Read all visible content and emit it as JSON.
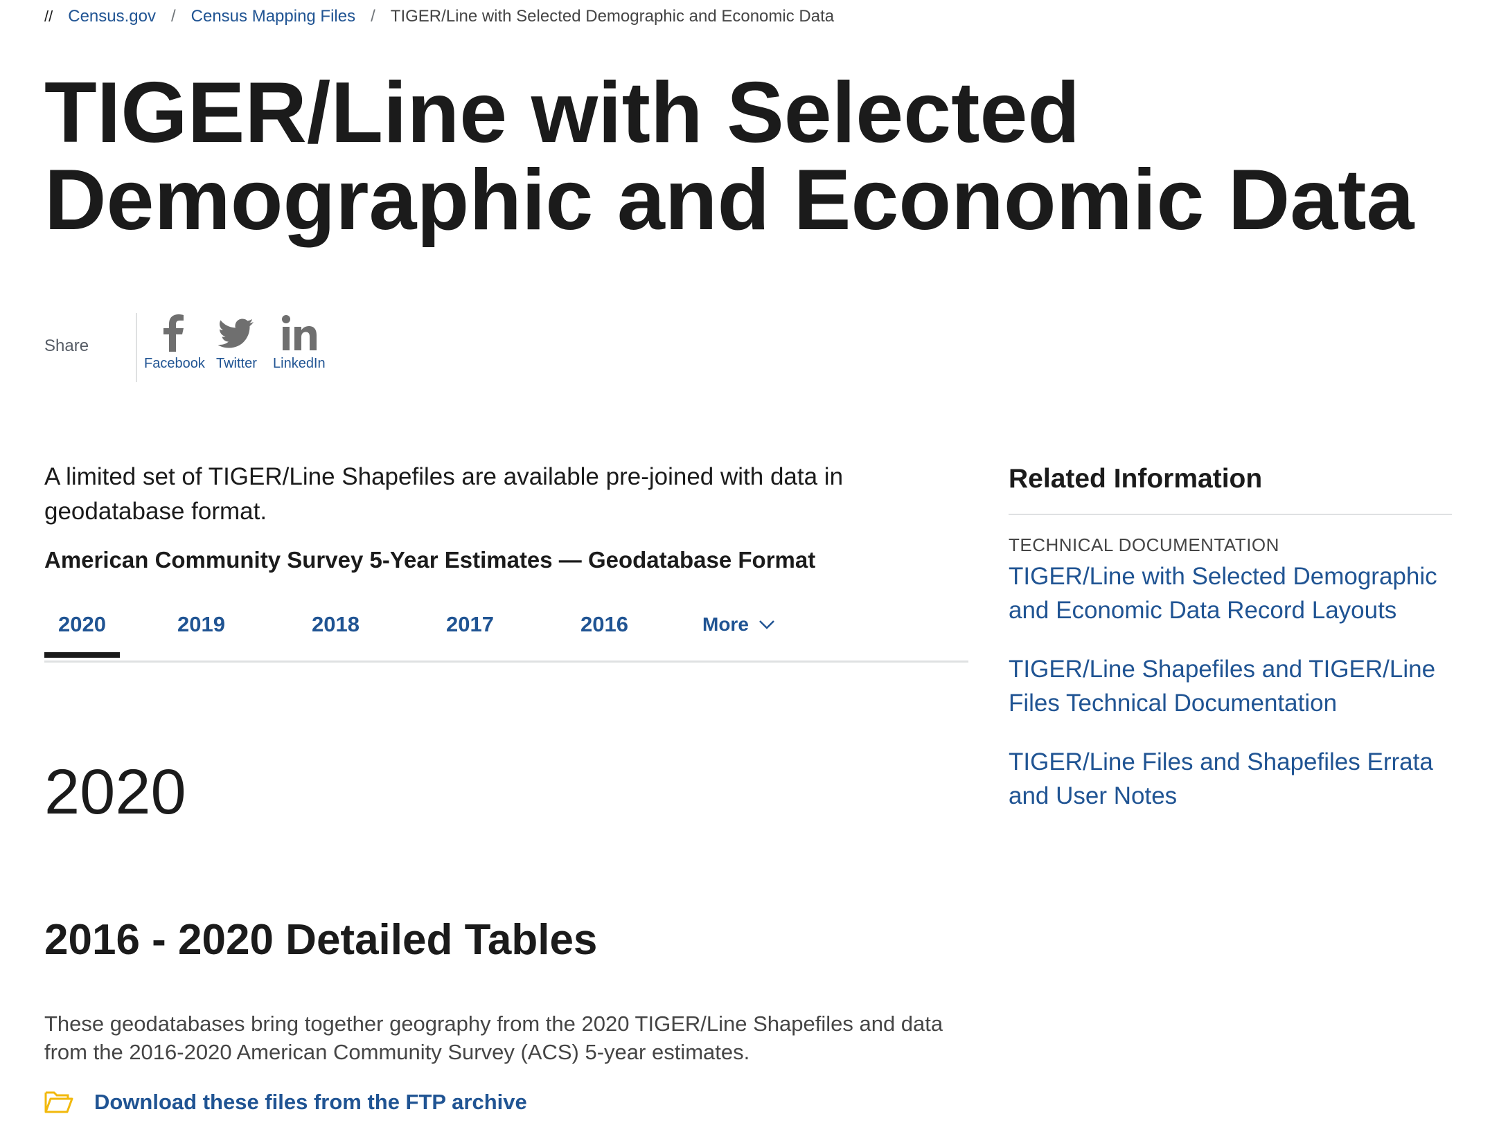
{
  "breadcrumb": {
    "prefix": "//",
    "items": [
      "Census.gov",
      "Census Mapping Files"
    ],
    "current": "TIGER/Line with Selected Demographic and Economic Data",
    "separator": "/"
  },
  "page_title": "TIGER/Line with Selected Demographic and Economic Data",
  "share": {
    "label": "Share",
    "items": [
      {
        "label": "Facebook",
        "icon": "facebook-icon"
      },
      {
        "label": "Twitter",
        "icon": "twitter-icon"
      },
      {
        "label": "LinkedIn",
        "icon": "linkedin-icon"
      }
    ]
  },
  "intro": "A limited set of TIGER/Line Shapefiles are available pre-joined with data in geodatabase format.",
  "acs_title": "American Community Survey 5-Year Estimates — Geodatabase Format",
  "tabs": {
    "items": [
      "2020",
      "2019",
      "2018",
      "2017",
      "2016"
    ],
    "more": "More",
    "active": "2020"
  },
  "year_heading": "2020",
  "section": {
    "heading": "2016 - 2020 Detailed Tables",
    "description": "These geodatabases bring together geography from the 2020 TIGER/Line Shapefiles and data from the 2016-2020 American Community Survey (ACS) 5-year estimates.",
    "download_label": "Download these files from the FTP archive"
  },
  "sidebar": {
    "title": "Related Information",
    "category": "TECHNICAL DOCUMENTATION",
    "links": [
      "TIGER/Line with Selected Demographic and Economic Data Record Layouts",
      "TIGER/Line Shapefiles and TIGER/Line Files Technical Documentation",
      "TIGER/Line Files and Shapefiles Errata and User Notes"
    ]
  },
  "colors": {
    "link": "#205493",
    "text": "#1b1b1b",
    "folder_icon": "#f2b90c",
    "divider": "#dfe1e2"
  }
}
